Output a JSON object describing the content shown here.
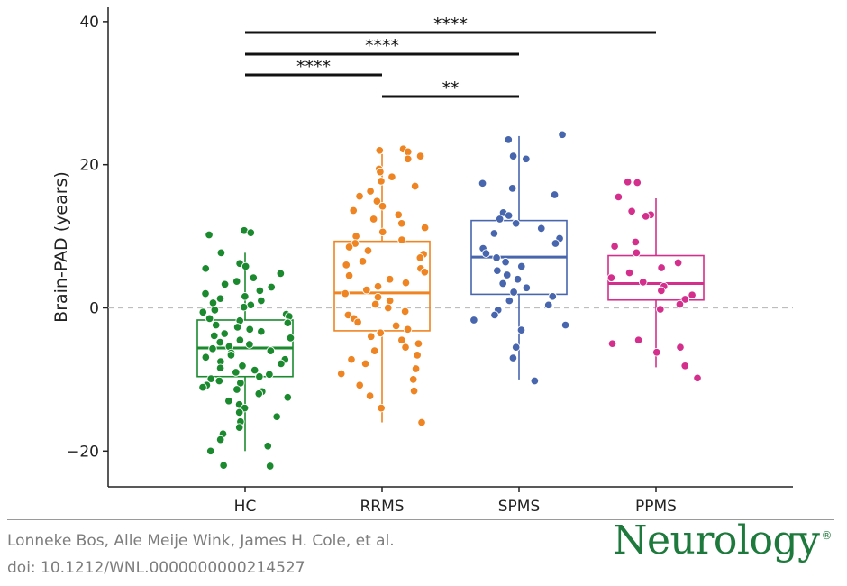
{
  "chart_data": {
    "type": "box",
    "title": "",
    "xlabel": "",
    "ylabel": "Brain-PAD (years)",
    "ylim": [
      -25,
      42
    ],
    "yticks": [
      -20,
      0,
      20,
      40
    ],
    "categories": [
      "HC",
      "RRMS",
      "SPMS",
      "PPMS"
    ],
    "reference_line": 0,
    "groups": [
      {
        "name": "HC",
        "color": "#1b8a2e",
        "box": {
          "q1": -9.6,
          "median": -5.6,
          "q3": -1.7,
          "whisker_low": -20,
          "whisker_high": 7.7
        },
        "points": [
          10.8,
          10.5,
          10.2,
          7.7,
          6.2,
          5.8,
          5.5,
          4.8,
          4.2,
          3.7,
          3.3,
          2.9,
          2.4,
          2.0,
          1.6,
          1.3,
          1.0,
          0.7,
          0.4,
          0.1,
          -0.3,
          -0.6,
          -0.9,
          -1.2,
          -1.5,
          -1.8,
          -2.1,
          -2.4,
          -2.7,
          -3.0,
          -3.3,
          -3.6,
          -3.9,
          -4.2,
          -4.5,
          -4.8,
          -5.1,
          -5.4,
          -5.7,
          -6.0,
          -6.3,
          -6.6,
          -6.9,
          -7.2,
          -7.5,
          -7.8,
          -8.1,
          -8.4,
          -8.7,
          -9.0,
          -9.3,
          -9.6,
          -9.9,
          -10.2,
          -10.5,
          -10.8,
          -11.1,
          -11.4,
          -11.7,
          -12.0,
          -12.5,
          -13.0,
          -13.5,
          -14.0,
          -14.6,
          -15.2,
          -15.9,
          -16.7,
          -17.6,
          -18.4,
          -19.3,
          -20.0,
          -22.0,
          -22.1
        ]
      },
      {
        "name": "RRMS",
        "color": "#ee8422",
        "box": {
          "q1": -3.2,
          "median": 2.1,
          "q3": 9.3,
          "whisker_low": -16,
          "whisker_high": 21.5
        },
        "points": [
          22.2,
          22.0,
          21.8,
          21.2,
          20.8,
          19.4,
          19.0,
          18.3,
          17.7,
          17.0,
          16.3,
          15.6,
          14.9,
          14.2,
          13.6,
          13.0,
          12.4,
          11.8,
          11.2,
          10.6,
          10.0,
          9.5,
          9.0,
          8.5,
          8.0,
          7.5,
          7.0,
          6.5,
          6.0,
          5.5,
          5.0,
          4.5,
          4.0,
          3.5,
          3.0,
          2.5,
          2.0,
          1.5,
          1.0,
          0.5,
          0.0,
          -0.5,
          -1.0,
          -1.5,
          -2.0,
          -2.5,
          -3.0,
          -3.5,
          -4.0,
          -4.5,
          -5.0,
          -5.5,
          -6.0,
          -6.6,
          -7.2,
          -7.8,
          -8.5,
          -9.2,
          -10.0,
          -10.8,
          -11.6,
          -12.3,
          -14.0,
          -16.0
        ]
      },
      {
        "name": "SPMS",
        "color": "#4866ad",
        "box": {
          "q1": 1.9,
          "median": 7.1,
          "q3": 12.2,
          "whisker_low": -10,
          "whisker_high": 24.0
        },
        "points": [
          24.2,
          23.5,
          21.2,
          20.8,
          17.4,
          16.7,
          15.8,
          13.3,
          12.9,
          12.4,
          11.8,
          11.1,
          10.4,
          9.7,
          9.0,
          8.3,
          7.6,
          7.0,
          6.4,
          5.8,
          5.2,
          4.6,
          4.0,
          3.4,
          2.8,
          2.2,
          1.6,
          1.0,
          0.4,
          -0.3,
          -1.0,
          -1.7,
          -2.4,
          -3.1,
          -5.5,
          -7.0,
          -10.2
        ]
      },
      {
        "name": "PPMS",
        "color": "#d42f8c",
        "box": {
          "q1": 1.1,
          "median": 3.4,
          "q3": 7.3,
          "whisker_low": -8.3,
          "whisker_high": 15.3
        },
        "points": [
          17.6,
          17.5,
          15.5,
          13.5,
          13.0,
          12.8,
          9.2,
          8.6,
          7.7,
          6.3,
          5.6,
          4.9,
          4.2,
          3.6,
          3.0,
          2.4,
          1.8,
          1.2,
          0.5,
          -0.2,
          -4.5,
          -5.0,
          -5.5,
          -6.2,
          -8.1,
          -9.8
        ]
      }
    ],
    "significance": [
      {
        "from": "HC",
        "to": "PPMS",
        "label": "****"
      },
      {
        "from": "HC",
        "to": "SPMS",
        "label": "****"
      },
      {
        "from": "HC",
        "to": "RRMS",
        "label": "****"
      },
      {
        "from": "RRMS",
        "to": "SPMS",
        "label": "**"
      }
    ]
  },
  "footer": {
    "authors": "Lonneke Bos, Alle Meije Wink, James H. Cole, et al.",
    "doi": "doi: 10.1212/WNL.0000000000214527",
    "logo": "Neurology",
    "logo_mark": "®"
  }
}
